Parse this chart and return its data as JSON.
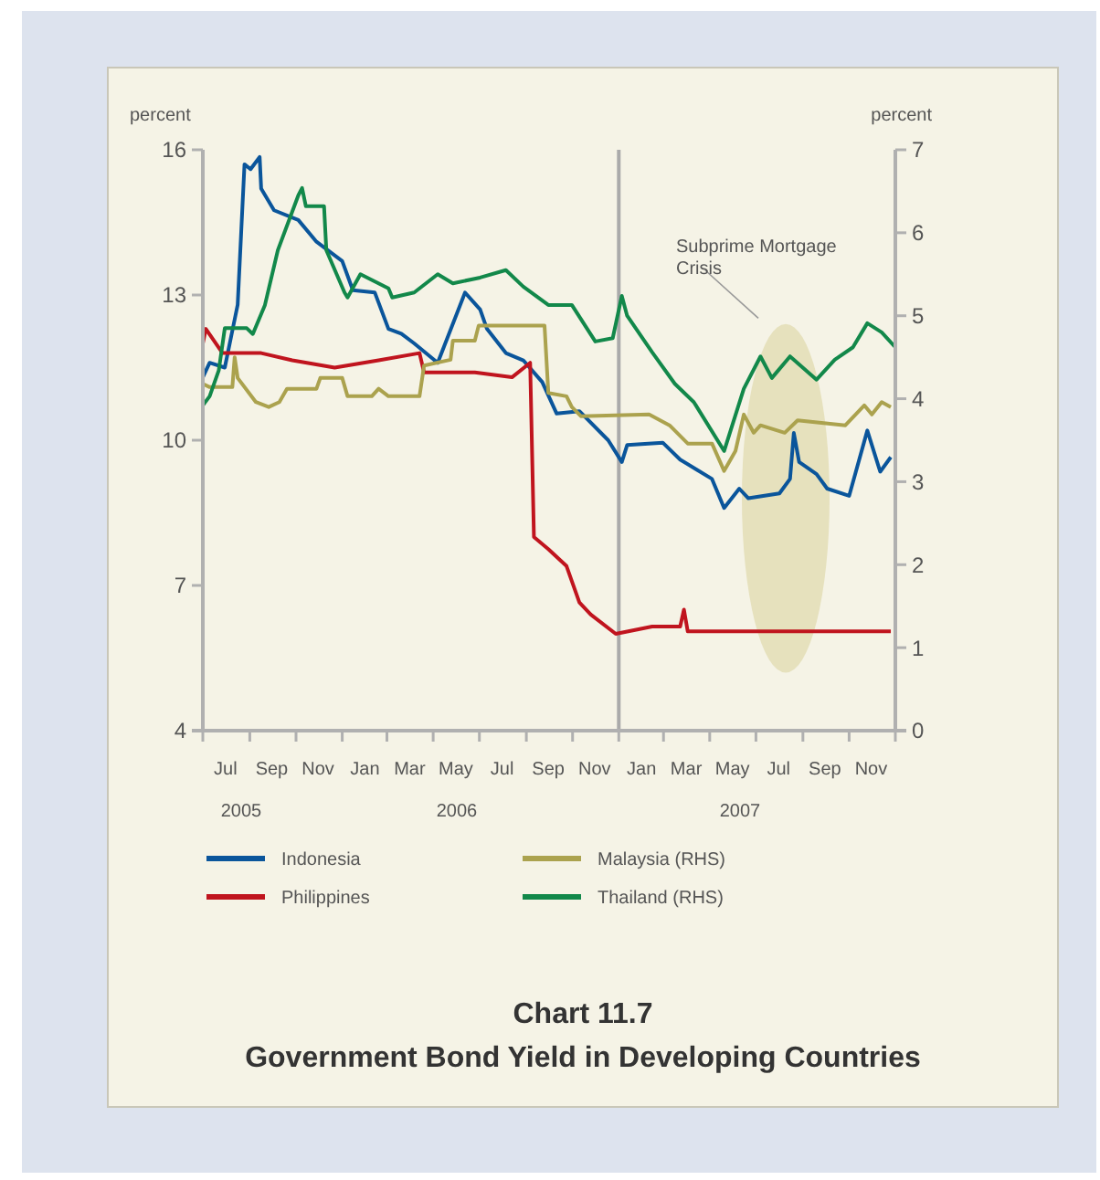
{
  "chart_data": {
    "type": "line",
    "title": "Chart 11.7",
    "subtitle": "Government Bond Yield in Developing Countries",
    "ylabel": "percent",
    "y2label": "percent",
    "xlim": [
      "2005-07-01",
      "2008-01-01"
    ],
    "xticks": [
      {
        "value": "2005-07-01",
        "label": null
      },
      {
        "value": "2005-07-31",
        "label": "Jul"
      },
      {
        "value": "2005-09-01",
        "label": null
      },
      {
        "value": "2005-09-30",
        "label": "Sep"
      },
      {
        "value": "2005-11-01",
        "label": null
      },
      {
        "value": "2005-11-30",
        "label": "Nov"
      },
      {
        "value": "2006-01-01",
        "label": null
      },
      {
        "value": "2006-01-31",
        "label": "Jan"
      },
      {
        "value": "2006-03-01",
        "label": null
      },
      {
        "value": "2006-03-31",
        "label": "Mar"
      },
      {
        "value": "2006-05-01",
        "label": null
      },
      {
        "value": "2006-05-31",
        "label": "May"
      },
      {
        "value": "2006-07-01",
        "label": null
      },
      {
        "value": "2006-07-31",
        "label": "Jul"
      },
      {
        "value": "2006-09-01",
        "label": null
      },
      {
        "value": "2006-09-30",
        "label": "Sep"
      },
      {
        "value": "2006-11-01",
        "label": null
      },
      {
        "value": "2006-11-30",
        "label": "Nov"
      },
      {
        "value": "2007-01-01",
        "label": null
      },
      {
        "value": "2007-01-31",
        "label": "Jan"
      },
      {
        "value": "2007-03-01",
        "label": null
      },
      {
        "value": "2007-03-31",
        "label": "Mar"
      },
      {
        "value": "2007-05-01",
        "label": null
      },
      {
        "value": "2007-05-31",
        "label": "May"
      },
      {
        "value": "2007-07-01",
        "label": null
      },
      {
        "value": "2007-07-31",
        "label": "Jul"
      },
      {
        "value": "2007-09-01",
        "label": null
      },
      {
        "value": "2007-09-30",
        "label": "Sep"
      },
      {
        "value": "2007-11-01",
        "label": null
      },
      {
        "value": "2007-11-30",
        "label": "Nov"
      },
      {
        "value": "2008-01-01",
        "label": null
      }
    ],
    "ylim": [
      4,
      16
    ],
    "yticks": [
      4,
      7,
      10,
      13,
      16
    ],
    "y2lim": [
      0,
      7
    ],
    "y2ticks": [
      0,
      1,
      2,
      3,
      4,
      5,
      6,
      7
    ],
    "grid": false,
    "legend": "bottom",
    "line_style": "solid",
    "marker": "none",
    "ref_lines": [
      {
        "axis": "x",
        "value": "2007-01-01",
        "color": "#aaaaaa"
      }
    ],
    "annotations": [
      "Subprime Mortgage Crisis",
      "2005",
      "2006",
      "2007"
    ],
    "series": [
      {
        "name": "Indonesia",
        "color": "#0a559b",
        "x": [
          "2005-07-01",
          "2005-07-10",
          "2005-07-30",
          "2005-08-16",
          "2005-08-25",
          "2005-09-02",
          "2005-09-14",
          "2005-09-16",
          "2005-10-03",
          "2005-11-04",
          "2005-11-28",
          "2006-01-01",
          "2006-01-15",
          "2006-02-13",
          "2006-03-03",
          "2006-03-20",
          "2006-04-06",
          "2006-05-07",
          "2006-06-12",
          "2006-07-02",
          "2006-07-11",
          "2006-08-05",
          "2006-08-28",
          "2006-09-22",
          "2006-10-11",
          "2006-11-10",
          "2006-12-18",
          "2007-01-05",
          "2007-01-12",
          "2007-02-28",
          "2007-03-23",
          "2007-05-04",
          "2007-05-20",
          "2007-06-09",
          "2007-06-21",
          "2007-08-01",
          "2007-08-15",
          "2007-08-20",
          "2007-08-27",
          "2007-09-19",
          "2007-10-03",
          "2007-11-01",
          "2007-11-25",
          "2007-12-12",
          "2007-12-26"
        ],
        "values": [
          11.3,
          11.6,
          11.5,
          12.8,
          15.7,
          15.6,
          15.85,
          15.2,
          14.75,
          14.55,
          14.1,
          13.7,
          13.1,
          13.05,
          12.3,
          12.2,
          12.0,
          11.6,
          13.05,
          12.7,
          12.3,
          11.8,
          11.65,
          11.2,
          10.55,
          10.6,
          10.0,
          9.55,
          9.9,
          9.95,
          9.6,
          9.2,
          8.6,
          9.0,
          8.8,
          8.9,
          9.2,
          10.15,
          9.55,
          9.3,
          9.0,
          8.85,
          10.2,
          9.35,
          9.65
        ]
      },
      {
        "name": "Philippines",
        "color": "#c0141e",
        "x": [
          "2005-07-01",
          "2005-07-05",
          "2005-07-27",
          "2005-09-16",
          "2005-10-27",
          "2005-12-22",
          "2006-02-18",
          "2006-04-13",
          "2006-04-19",
          "2006-06-25",
          "2006-08-13",
          "2006-09-06",
          "2006-09-11",
          "2006-09-30",
          "2006-10-24",
          "2006-11-10",
          "2006-11-25",
          "2006-12-28",
          "2007-02-14",
          "2007-03-23",
          "2007-03-28",
          "2007-04-02",
          "2007-12-26"
        ],
        "values": [
          12.0,
          12.3,
          11.8,
          11.8,
          11.65,
          11.5,
          11.65,
          11.8,
          11.4,
          11.4,
          11.3,
          11.6,
          8.0,
          7.75,
          7.4,
          6.65,
          6.4,
          6.0,
          6.15,
          6.15,
          6.5,
          6.05,
          6.05
        ]
      },
      {
        "name": "Malaysia (RHS)",
        "axis": "y2",
        "color": "#aba24e",
        "x": [
          "2005-07-01",
          "2005-07-10",
          "2005-08-09",
          "2005-08-12",
          "2005-08-16",
          "2005-09-09",
          "2005-09-26",
          "2005-10-10",
          "2005-10-20",
          "2005-11-28",
          "2005-12-03",
          "2006-01-01",
          "2006-01-08",
          "2006-02-09",
          "2006-02-18",
          "2006-03-03",
          "2006-04-13",
          "2006-04-19",
          "2006-05-24",
          "2006-05-27",
          "2006-06-25",
          "2006-06-30",
          "2006-09-25",
          "2006-09-30",
          "2006-10-24",
          "2006-10-31",
          "2006-11-12",
          "2007-02-10",
          "2007-03-09",
          "2007-04-02",
          "2007-05-04",
          "2007-05-20",
          "2007-06-04",
          "2007-06-15",
          "2007-06-28",
          "2007-07-07",
          "2007-08-08",
          "2007-08-25",
          "2007-10-27",
          "2007-11-21",
          "2007-12-01",
          "2007-12-14",
          "2007-12-26"
        ],
        "values": [
          4.18,
          4.14,
          4.14,
          4.5,
          4.25,
          3.96,
          3.9,
          3.96,
          4.12,
          4.12,
          4.25,
          4.25,
          4.03,
          4.03,
          4.12,
          4.03,
          4.03,
          4.4,
          4.47,
          4.7,
          4.7,
          4.88,
          4.88,
          4.07,
          4.03,
          3.9,
          3.79,
          3.81,
          3.68,
          3.46,
          3.46,
          3.13,
          3.37,
          3.81,
          3.59,
          3.68,
          3.59,
          3.74,
          3.68,
          3.92,
          3.81,
          3.96,
          3.9
        ]
      },
      {
        "name": "Thailand (RHS)",
        "axis": "y2",
        "color": "#12884a",
        "x": [
          "2005-07-01",
          "2005-07-10",
          "2005-07-22",
          "2005-07-30",
          "2005-08-28",
          "2005-09-05",
          "2005-09-21",
          "2005-10-08",
          "2005-11-04",
          "2005-11-09",
          "2005-11-14",
          "2005-12-08",
          "2005-12-11",
          "2006-01-04",
          "2006-01-08",
          "2006-01-25",
          "2006-03-03",
          "2006-03-08",
          "2006-04-06",
          "2006-05-07",
          "2006-05-27",
          "2006-07-02",
          "2006-08-05",
          "2006-08-28",
          "2006-09-30",
          "2006-10-31",
          "2006-12-01",
          "2006-12-24",
          "2007-01-05",
          "2007-01-12",
          "2007-02-14",
          "2007-03-16",
          "2007-04-10",
          "2007-05-20",
          "2007-06-15",
          "2007-07-07",
          "2007-07-22",
          "2007-08-15",
          "2007-09-19",
          "2007-10-13",
          "2007-11-06",
          "2007-11-25",
          "2007-12-14",
          "2008-01-01"
        ],
        "values": [
          3.92,
          4.03,
          4.34,
          4.85,
          4.85,
          4.78,
          5.13,
          5.79,
          6.45,
          6.54,
          6.32,
          6.32,
          5.79,
          5.28,
          5.22,
          5.5,
          5.33,
          5.22,
          5.28,
          5.5,
          5.39,
          5.46,
          5.55,
          5.35,
          5.13,
          5.13,
          4.69,
          4.73,
          5.24,
          5.0,
          4.56,
          4.18,
          3.96,
          3.37,
          4.12,
          4.51,
          4.25,
          4.51,
          4.23,
          4.47,
          4.62,
          4.91,
          4.8,
          4.62
        ]
      }
    ]
  }
}
